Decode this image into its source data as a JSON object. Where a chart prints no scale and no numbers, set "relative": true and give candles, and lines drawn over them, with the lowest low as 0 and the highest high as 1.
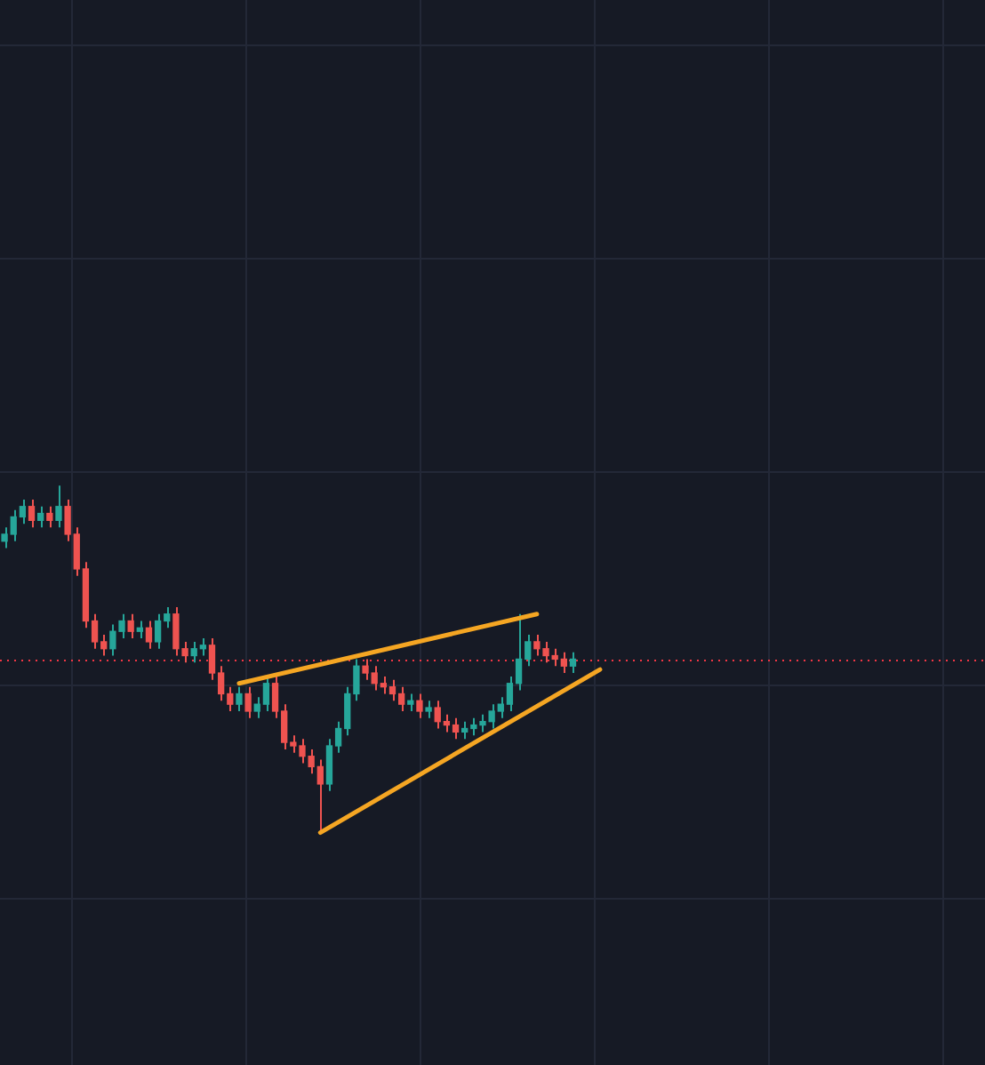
{
  "chart_data": {
    "type": "candlestick",
    "relative": true,
    "grid": true,
    "categories": [
      null,
      null,
      null,
      null,
      null,
      null,
      null,
      null,
      null,
      null,
      null,
      null,
      null,
      null,
      null,
      null,
      null,
      null,
      null,
      null,
      null,
      null,
      null,
      null,
      null,
      null,
      null,
      null,
      null,
      null,
      null,
      null,
      null,
      null,
      null,
      null,
      null,
      null,
      null,
      null,
      null,
      null,
      null,
      null,
      null,
      null,
      null,
      null,
      null,
      null,
      null,
      null,
      null,
      null,
      null,
      null,
      null,
      null,
      null,
      null,
      null,
      null,
      null,
      null,
      null,
      null,
      null
    ],
    "ohlc": [
      [
        0.84,
        0.88,
        0.82,
        0.86
      ],
      [
        0.86,
        0.93,
        0.84,
        0.91
      ],
      [
        0.91,
        0.96,
        0.89,
        0.94
      ],
      [
        0.94,
        0.96,
        0.88,
        0.9
      ],
      [
        0.9,
        0.94,
        0.88,
        0.92
      ],
      [
        0.92,
        0.94,
        0.88,
        0.9
      ],
      [
        0.9,
        1.0,
        0.88,
        0.94
      ],
      [
        0.94,
        0.96,
        0.84,
        0.86
      ],
      [
        0.86,
        0.88,
        0.74,
        0.76
      ],
      [
        0.76,
        0.78,
        0.59,
        0.61
      ],
      [
        0.61,
        0.63,
        0.53,
        0.55
      ],
      [
        0.55,
        0.57,
        0.51,
        0.53
      ],
      [
        0.53,
        0.6,
        0.51,
        0.58
      ],
      [
        0.58,
        0.63,
        0.56,
        0.61
      ],
      [
        0.61,
        0.63,
        0.56,
        0.58
      ],
      [
        0.58,
        0.61,
        0.56,
        0.59
      ],
      [
        0.59,
        0.61,
        0.53,
        0.55
      ],
      [
        0.55,
        0.63,
        0.53,
        0.61
      ],
      [
        0.61,
        0.65,
        0.59,
        0.63
      ],
      [
        0.63,
        0.65,
        0.51,
        0.53
      ],
      [
        0.53,
        0.55,
        0.49,
        0.51
      ],
      [
        0.51,
        0.55,
        0.49,
        0.53
      ],
      [
        0.53,
        0.56,
        0.51,
        0.54
      ],
      [
        0.54,
        0.56,
        0.44,
        0.46
      ],
      [
        0.46,
        0.48,
        0.38,
        0.4
      ],
      [
        0.4,
        0.42,
        0.35,
        0.37
      ],
      [
        0.37,
        0.42,
        0.35,
        0.4
      ],
      [
        0.4,
        0.42,
        0.33,
        0.35
      ],
      [
        0.35,
        0.39,
        0.33,
        0.37
      ],
      [
        0.37,
        0.45,
        0.35,
        0.43
      ],
      [
        0.43,
        0.45,
        0.33,
        0.35
      ],
      [
        0.35,
        0.37,
        0.24,
        0.26
      ],
      [
        0.26,
        0.28,
        0.23,
        0.25
      ],
      [
        0.25,
        0.27,
        0.2,
        0.22
      ],
      [
        0.22,
        0.24,
        0.17,
        0.19
      ],
      [
        0.19,
        0.21,
        0.0,
        0.14
      ],
      [
        0.14,
        0.27,
        0.12,
        0.25
      ],
      [
        0.25,
        0.32,
        0.23,
        0.3
      ],
      [
        0.3,
        0.42,
        0.28,
        0.4
      ],
      [
        0.4,
        0.5,
        0.38,
        0.48
      ],
      [
        0.48,
        0.5,
        0.44,
        0.46
      ],
      [
        0.46,
        0.48,
        0.41,
        0.43
      ],
      [
        0.43,
        0.45,
        0.4,
        0.42
      ],
      [
        0.42,
        0.44,
        0.38,
        0.4
      ],
      [
        0.4,
        0.42,
        0.35,
        0.37
      ],
      [
        0.37,
        0.4,
        0.35,
        0.38
      ],
      [
        0.38,
        0.4,
        0.33,
        0.35
      ],
      [
        0.35,
        0.38,
        0.33,
        0.36
      ],
      [
        0.36,
        0.38,
        0.3,
        0.32
      ],
      [
        0.32,
        0.34,
        0.29,
        0.31
      ],
      [
        0.31,
        0.33,
        0.27,
        0.29
      ],
      [
        0.29,
        0.32,
        0.27,
        0.3
      ],
      [
        0.3,
        0.33,
        0.28,
        0.31
      ],
      [
        0.31,
        0.34,
        0.29,
        0.32
      ],
      [
        0.32,
        0.37,
        0.3,
        0.35
      ],
      [
        0.35,
        0.39,
        0.33,
        0.37
      ],
      [
        0.37,
        0.45,
        0.35,
        0.43
      ],
      [
        0.43,
        0.63,
        0.41,
        0.5
      ],
      [
        0.5,
        0.57,
        0.48,
        0.55
      ],
      [
        0.55,
        0.57,
        0.51,
        0.53
      ],
      [
        0.53,
        0.55,
        0.49,
        0.51
      ],
      [
        0.51,
        0.53,
        0.48,
        0.5
      ],
      [
        0.5,
        0.52,
        0.46,
        0.48
      ],
      [
        0.48,
        0.52,
        0.46,
        0.5
      ],
      null,
      null,
      null
    ],
    "colors": [
      "#26a69a",
      "#26a69a",
      "#26a69a",
      "#ef5350",
      "#26a69a",
      "#ef5350",
      "#26a69a",
      "#ef5350",
      "#ef5350",
      "#ef5350",
      "#ef5350",
      "#ef5350",
      "#26a69a",
      "#26a69a",
      "#ef5350",
      "#26a69a",
      "#ef5350",
      "#26a69a",
      "#26a69a",
      "#ef5350",
      "#ef5350",
      "#26a69a",
      "#26a69a",
      "#ef5350",
      "#ef5350",
      "#ef5350",
      "#26a69a",
      "#ef5350",
      "#26a69a",
      "#26a69a",
      "#ef5350",
      "#ef5350",
      "#ef5350",
      "#ef5350",
      "#ef5350",
      "#ef5350",
      "#26a69a",
      "#26a69a",
      "#26a69a",
      "#26a69a",
      "#ef5350",
      "#ef5350",
      "#ef5350",
      "#ef5350",
      "#ef5350",
      "#26a69a",
      "#ef5350",
      "#26a69a",
      "#ef5350",
      "#ef5350",
      "#ef5350",
      "#26a69a",
      "#26a69a",
      "#26a69a",
      "#26a69a",
      "#26a69a",
      "#26a69a",
      "#26a69a",
      "#26a69a",
      "#ef5350",
      "#ef5350",
      "#ef5350",
      "#ef5350",
      "#26a69a",
      null,
      null,
      null
    ],
    "series": [
      {
        "type": "line",
        "color": "#f5a623",
        "values": [
          null,
          null,
          null,
          null,
          null,
          null,
          null,
          null,
          null,
          null,
          null,
          null,
          null,
          null,
          null,
          null,
          null,
          null,
          null,
          null,
          null,
          null,
          null,
          null,
          null,
          null,
          0.43,
          null,
          null,
          null,
          null,
          null,
          null,
          null,
          null,
          null,
          null,
          null,
          null,
          null,
          null,
          null,
          null,
          null,
          null,
          null,
          null,
          null,
          null,
          null,
          null,
          null,
          null,
          null,
          null,
          null,
          null,
          null,
          null,
          0.63,
          null,
          null,
          null,
          null,
          null,
          null,
          null
        ]
      },
      {
        "type": "line",
        "color": "#f5a623",
        "values": [
          null,
          null,
          null,
          null,
          null,
          null,
          null,
          null,
          null,
          null,
          null,
          null,
          null,
          null,
          null,
          null,
          null,
          null,
          null,
          null,
          null,
          null,
          null,
          null,
          null,
          null,
          null,
          null,
          null,
          null,
          null,
          null,
          null,
          null,
          null,
          0.0,
          null,
          null,
          null,
          null,
          null,
          null,
          null,
          null,
          null,
          null,
          null,
          null,
          null,
          null,
          null,
          null,
          null,
          null,
          null,
          null,
          null,
          null,
          null,
          null,
          null,
          null,
          null,
          null,
          null,
          null,
          0.47
        ]
      }
    ],
    "ref_lines": [
      {
        "axis": "y",
        "value": 0.5,
        "color": "#f23645",
        "line_style": "dotted"
      }
    ]
  }
}
